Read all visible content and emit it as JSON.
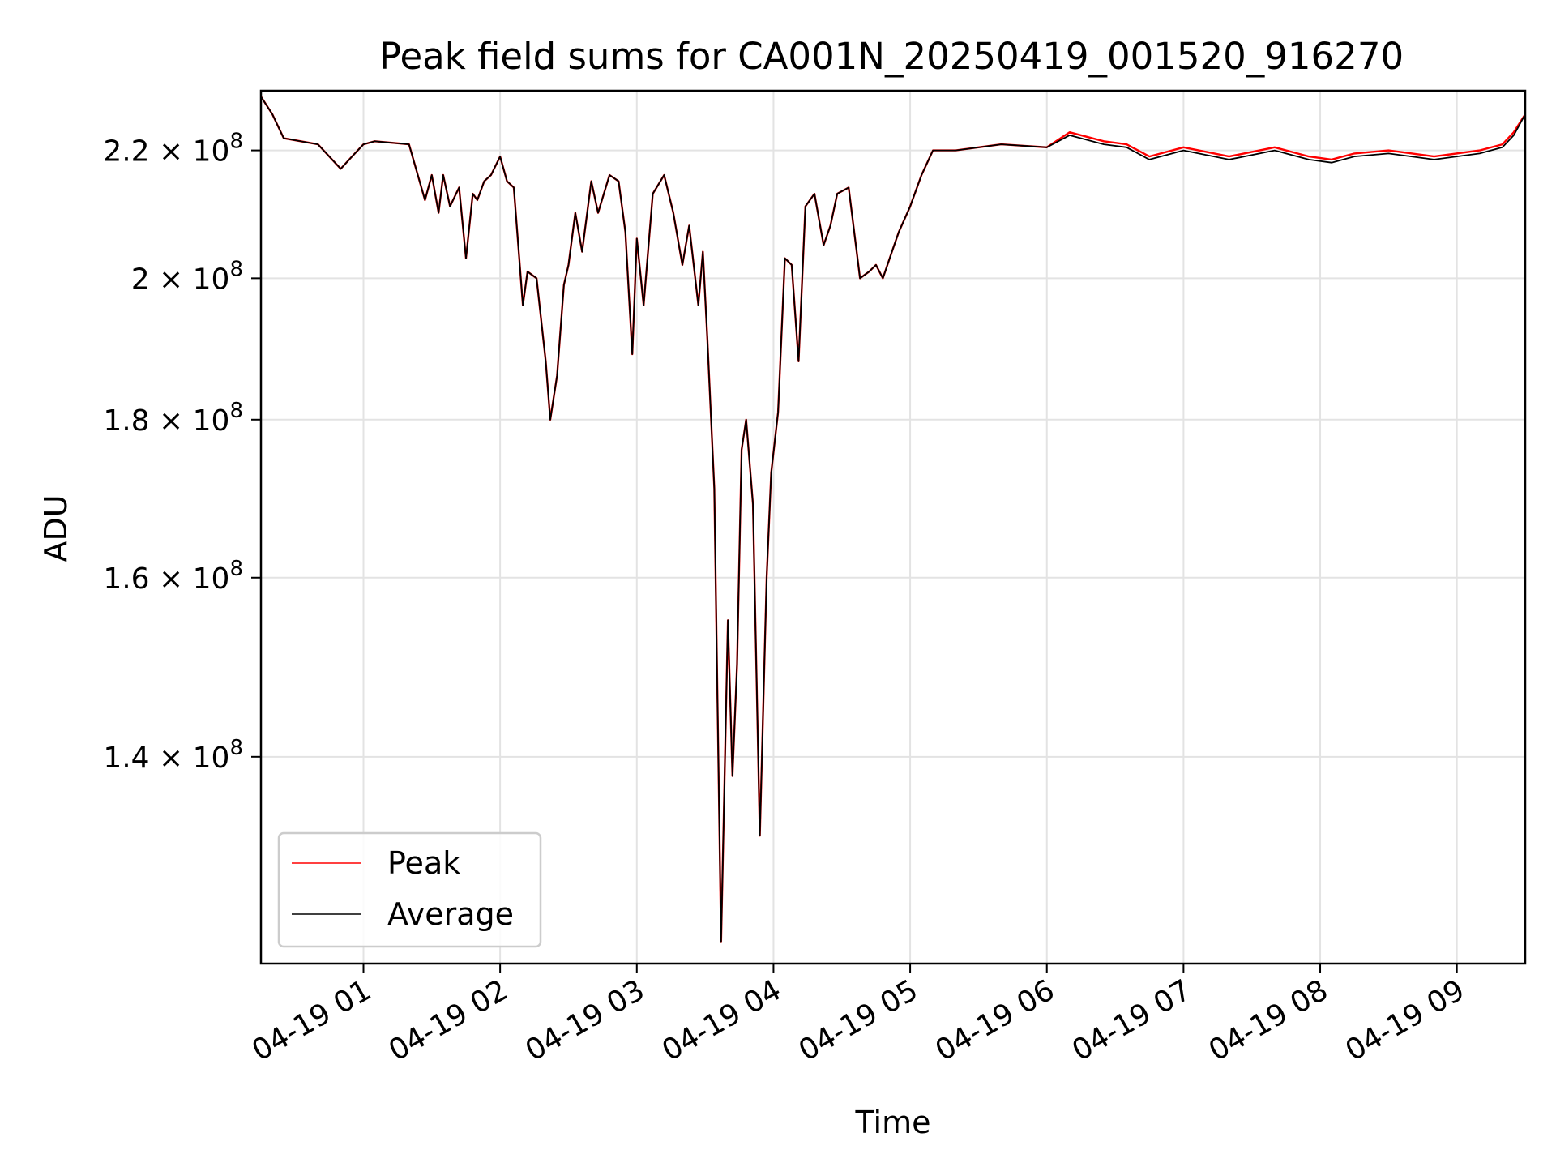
{
  "chart_data": {
    "type": "line",
    "title": "Peak field sums for CA001N_20250419_001520_916270",
    "xlabel": "Time",
    "ylabel": "ADU",
    "yscale": "log",
    "xlim": [
      "2025-04-19T00:15",
      "2025-04-19T09:30"
    ],
    "ylim": [
      120000000,
      230000000
    ],
    "grid": true,
    "legend_position": "lower-left",
    "x_ticks": [
      "2025-04-19T01:00",
      "2025-04-19T02:00",
      "2025-04-19T03:00",
      "2025-04-19T04:00",
      "2025-04-19T05:00",
      "2025-04-19T06:00",
      "2025-04-19T07:00",
      "2025-04-19T08:00",
      "2025-04-19T09:00"
    ],
    "x_tick_labels": [
      "04-19 01",
      "04-19 02",
      "04-19 03",
      "04-19 04",
      "04-19 05",
      "04-19 06",
      "04-19 07",
      "04-19 08",
      "04-19 09"
    ],
    "y_ticks": [
      {
        "value": 140000000,
        "mantissa": "1.4",
        "exp": "8"
      },
      {
        "value": 160000000,
        "mantissa": "1.6",
        "exp": "8"
      },
      {
        "value": 180000000,
        "mantissa": "1.8",
        "exp": "8"
      },
      {
        "value": 200000000,
        "mantissa": "2",
        "exp": "8"
      },
      {
        "value": 220000000,
        "mantissa": "2.2",
        "exp": "8"
      }
    ],
    "series": [
      {
        "name": "Peak",
        "color": "#ff0000",
        "x": [
          "2025-04-19T00:15",
          "2025-04-19T00:20",
          "2025-04-19T00:25",
          "2025-04-19T00:40",
          "2025-04-19T00:50",
          "2025-04-19T00:55",
          "2025-04-19T01:00",
          "2025-04-19T01:05",
          "2025-04-19T01:20",
          "2025-04-19T01:27",
          "2025-04-19T01:30",
          "2025-04-19T01:33",
          "2025-04-19T01:35",
          "2025-04-19T01:38",
          "2025-04-19T01:42",
          "2025-04-19T01:45",
          "2025-04-19T01:48",
          "2025-04-19T01:50",
          "2025-04-19T01:53",
          "2025-04-19T01:56",
          "2025-04-19T02:00",
          "2025-04-19T02:03",
          "2025-04-19T02:06",
          "2025-04-19T02:10",
          "2025-04-19T02:12",
          "2025-04-19T02:16",
          "2025-04-19T02:20",
          "2025-04-19T02:22",
          "2025-04-19T02:25",
          "2025-04-19T02:28",
          "2025-04-19T02:30",
          "2025-04-19T02:33",
          "2025-04-19T02:36",
          "2025-04-19T02:40",
          "2025-04-19T02:43",
          "2025-04-19T02:48",
          "2025-04-19T02:52",
          "2025-04-19T02:55",
          "2025-04-19T02:58",
          "2025-04-19T03:00",
          "2025-04-19T03:03",
          "2025-04-19T03:07",
          "2025-04-19T03:12",
          "2025-04-19T03:16",
          "2025-04-19T03:20",
          "2025-04-19T03:23",
          "2025-04-19T03:27",
          "2025-04-19T03:29",
          "2025-04-19T03:31",
          "2025-04-19T03:34",
          "2025-04-19T03:37",
          "2025-04-19T03:40",
          "2025-04-19T03:42",
          "2025-04-19T03:44",
          "2025-04-19T03:46",
          "2025-04-19T03:48",
          "2025-04-19T03:51",
          "2025-04-19T03:54",
          "2025-04-19T03:57",
          "2025-04-19T03:59",
          "2025-04-19T04:02",
          "2025-04-19T04:05",
          "2025-04-19T04:08",
          "2025-04-19T04:11",
          "2025-04-19T04:14",
          "2025-04-19T04:18",
          "2025-04-19T04:22",
          "2025-04-19T04:25",
          "2025-04-19T04:28",
          "2025-04-19T04:33",
          "2025-04-19T04:38",
          "2025-04-19T04:42",
          "2025-04-19T04:45",
          "2025-04-19T04:48",
          "2025-04-19T04:52",
          "2025-04-19T04:55",
          "2025-04-19T05:00",
          "2025-04-19T05:05",
          "2025-04-19T05:10",
          "2025-04-19T05:20",
          "2025-04-19T05:40",
          "2025-04-19T06:00",
          "2025-04-19T06:10",
          "2025-04-19T06:25",
          "2025-04-19T06:35",
          "2025-04-19T06:45",
          "2025-04-19T07:00",
          "2025-04-19T07:20",
          "2025-04-19T07:40",
          "2025-04-19T07:55",
          "2025-04-19T08:05",
          "2025-04-19T08:15",
          "2025-04-19T08:30",
          "2025-04-19T08:50",
          "2025-04-19T09:10",
          "2025-04-19T09:20",
          "2025-04-19T09:25",
          "2025-04-19T09:30"
        ],
        "y": [
          229000000,
          226000000,
          222000000,
          221000000,
          217000000,
          219000000,
          221000000,
          221500000,
          221000000,
          212000000,
          216000000,
          210000000,
          216000000,
          211000000,
          214000000,
          203000000,
          213000000,
          212000000,
          215000000,
          216000000,
          219000000,
          215000000,
          214000000,
          196000000,
          201000000,
          200000000,
          188000000,
          180000000,
          186000000,
          199000000,
          202000000,
          210000000,
          204000000,
          215000000,
          210000000,
          216000000,
          215000000,
          207000000,
          189000000,
          206000000,
          196000000,
          213000000,
          216000000,
          210000000,
          202000000,
          208000000,
          196000000,
          204000000,
          191000000,
          171000000,
          122000000,
          155000000,
          138000000,
          150000000,
          176000000,
          180000000,
          169000000,
          132000000,
          160000000,
          173000000,
          181000000,
          203000000,
          202000000,
          188000000,
          211000000,
          213000000,
          205000000,
          208000000,
          213000000,
          214000000,
          200000000,
          201000000,
          202000000,
          200000000,
          204000000,
          207000000,
          211000000,
          216000000,
          220000000,
          220000000,
          221000000,
          220500000,
          223000000,
          221500000,
          221000000,
          219000000,
          220500000,
          219000000,
          220500000,
          219000000,
          218500000,
          219500000,
          220000000,
          219000000,
          220000000,
          221000000,
          223000000,
          226000000
        ]
      },
      {
        "name": "Average",
        "color": "#000000",
        "x": [
          "2025-04-19T00:15",
          "2025-04-19T00:20",
          "2025-04-19T00:25",
          "2025-04-19T00:40",
          "2025-04-19T00:50",
          "2025-04-19T00:55",
          "2025-04-19T01:00",
          "2025-04-19T01:05",
          "2025-04-19T01:20",
          "2025-04-19T01:27",
          "2025-04-19T01:30",
          "2025-04-19T01:33",
          "2025-04-19T01:35",
          "2025-04-19T01:38",
          "2025-04-19T01:42",
          "2025-04-19T01:45",
          "2025-04-19T01:48",
          "2025-04-19T01:50",
          "2025-04-19T01:53",
          "2025-04-19T01:56",
          "2025-04-19T02:00",
          "2025-04-19T02:03",
          "2025-04-19T02:06",
          "2025-04-19T02:10",
          "2025-04-19T02:12",
          "2025-04-19T02:16",
          "2025-04-19T02:20",
          "2025-04-19T02:22",
          "2025-04-19T02:25",
          "2025-04-19T02:28",
          "2025-04-19T02:30",
          "2025-04-19T02:33",
          "2025-04-19T02:36",
          "2025-04-19T02:40",
          "2025-04-19T02:43",
          "2025-04-19T02:48",
          "2025-04-19T02:52",
          "2025-04-19T02:55",
          "2025-04-19T02:58",
          "2025-04-19T03:00",
          "2025-04-19T03:03",
          "2025-04-19T03:07",
          "2025-04-19T03:12",
          "2025-04-19T03:16",
          "2025-04-19T03:20",
          "2025-04-19T03:23",
          "2025-04-19T03:27",
          "2025-04-19T03:29",
          "2025-04-19T03:31",
          "2025-04-19T03:34",
          "2025-04-19T03:37",
          "2025-04-19T03:40",
          "2025-04-19T03:42",
          "2025-04-19T03:44",
          "2025-04-19T03:46",
          "2025-04-19T03:48",
          "2025-04-19T03:51",
          "2025-04-19T03:54",
          "2025-04-19T03:57",
          "2025-04-19T03:59",
          "2025-04-19T04:02",
          "2025-04-19T04:05",
          "2025-04-19T04:08",
          "2025-04-19T04:11",
          "2025-04-19T04:14",
          "2025-04-19T04:18",
          "2025-04-19T04:22",
          "2025-04-19T04:25",
          "2025-04-19T04:28",
          "2025-04-19T04:33",
          "2025-04-19T04:38",
          "2025-04-19T04:42",
          "2025-04-19T04:45",
          "2025-04-19T04:48",
          "2025-04-19T04:52",
          "2025-04-19T04:55",
          "2025-04-19T05:00",
          "2025-04-19T05:05",
          "2025-04-19T05:10",
          "2025-04-19T05:20",
          "2025-04-19T05:40",
          "2025-04-19T06:00",
          "2025-04-19T06:10",
          "2025-04-19T06:25",
          "2025-04-19T06:35",
          "2025-04-19T06:45",
          "2025-04-19T07:00",
          "2025-04-19T07:20",
          "2025-04-19T07:40",
          "2025-04-19T07:55",
          "2025-04-19T08:05",
          "2025-04-19T08:15",
          "2025-04-19T08:30",
          "2025-04-19T08:50",
          "2025-04-19T09:10",
          "2025-04-19T09:20",
          "2025-04-19T09:25",
          "2025-04-19T09:30"
        ],
        "y": [
          229000000,
          226000000,
          222000000,
          221000000,
          217000000,
          219000000,
          221000000,
          221500000,
          221000000,
          212000000,
          216000000,
          210000000,
          216000000,
          211000000,
          214000000,
          203000000,
          213000000,
          212000000,
          215000000,
          216000000,
          219000000,
          215000000,
          214000000,
          196000000,
          201000000,
          200000000,
          188000000,
          180000000,
          186000000,
          199000000,
          202000000,
          210000000,
          204000000,
          215000000,
          210000000,
          216000000,
          215000000,
          207000000,
          189000000,
          206000000,
          196000000,
          213000000,
          216000000,
          210000000,
          202000000,
          208000000,
          196000000,
          204000000,
          191000000,
          171000000,
          122000000,
          155000000,
          138000000,
          150000000,
          176000000,
          180000000,
          169000000,
          132000000,
          160000000,
          173000000,
          181000000,
          203000000,
          202000000,
          188000000,
          211000000,
          213000000,
          205000000,
          208000000,
          213000000,
          214000000,
          200000000,
          201000000,
          202000000,
          200000000,
          204000000,
          207000000,
          211000000,
          216000000,
          220000000,
          220000000,
          221000000,
          220500000,
          222500000,
          221000000,
          220500000,
          218500000,
          220000000,
          218500000,
          220000000,
          218500000,
          218000000,
          219000000,
          219500000,
          218500000,
          219500000,
          220500000,
          222500000,
          226000000
        ]
      }
    ]
  }
}
